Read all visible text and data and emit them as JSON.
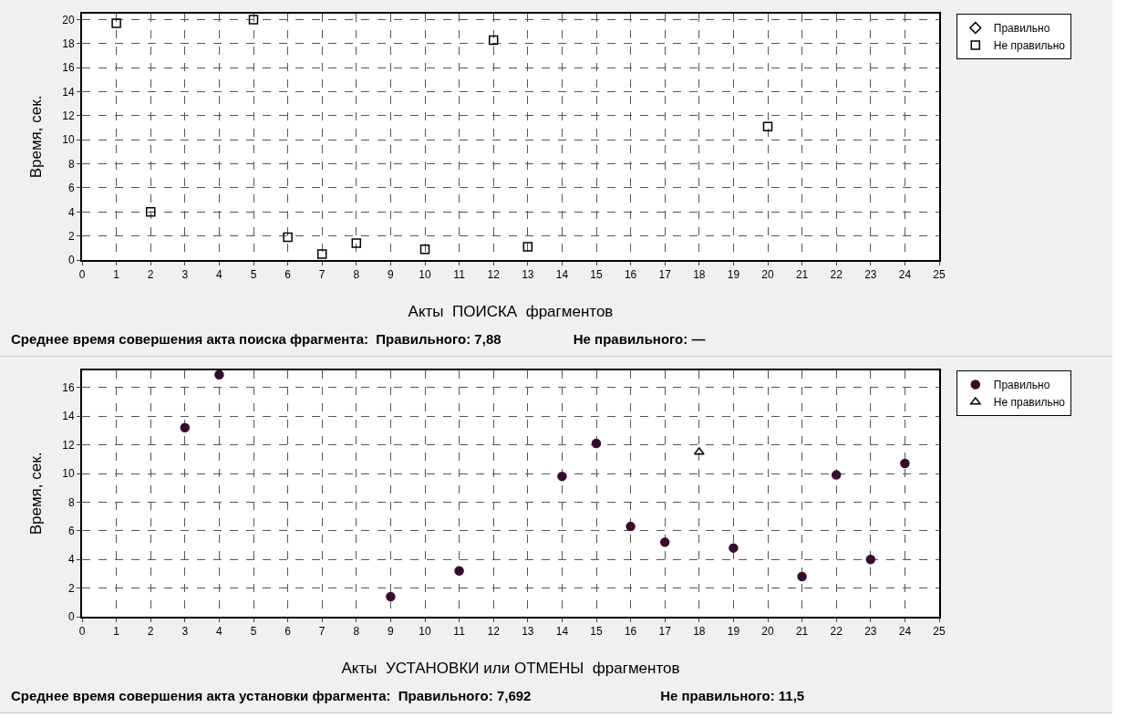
{
  "chart_data": [
    {
      "type": "scatter",
      "xlabel": "Акты  ПОИСКА  фрагментов",
      "ylabel": "Время, сек.",
      "xlim": [
        0,
        25
      ],
      "xticks": [
        0,
        1,
        2,
        3,
        4,
        5,
        6,
        7,
        8,
        9,
        10,
        11,
        12,
        13,
        14,
        15,
        16,
        17,
        18,
        19,
        20,
        21,
        22,
        23,
        24,
        25
      ],
      "ylim": [
        0,
        20.5
      ],
      "yticks": [
        0,
        2,
        4,
        6,
        8,
        10,
        12,
        14,
        16,
        18,
        20
      ],
      "grid": true,
      "legend": "top right",
      "series": [
        {
          "name": "Правильно",
          "color": "#000000",
          "marker": "diamond"
        },
        {
          "name": "Не правильно",
          "color": "#000000",
          "marker": "square",
          "x": [
            1,
            2,
            5,
            6,
            7,
            8,
            10,
            12,
            13,
            20
          ],
          "values": [
            19.7,
            4,
            20,
            1.9,
            0.5,
            1.4,
            0.9,
            18.3,
            1.1,
            11.1
          ]
        }
      ],
      "annotations": [
        "Среднее время совершения акта поиска фрагмента:  Правильного: 7,88                   Не правильного: —"
      ]
    },
    {
      "type": "scatter",
      "xlabel": "Акты  УСТАНОВКИ или ОТМЕНЫ  фрагментов",
      "ylabel": "Время, сек.",
      "xlim": [
        0,
        25
      ],
      "xticks": [
        0,
        1,
        2,
        3,
        4,
        5,
        6,
        7,
        8,
        9,
        10,
        11,
        12,
        13,
        14,
        15,
        16,
        17,
        18,
        19,
        20,
        21,
        22,
        23,
        24,
        25
      ],
      "ylim": [
        0,
        17.2
      ],
      "yticks": [
        0,
        2,
        4,
        6,
        8,
        10,
        12,
        14,
        16
      ],
      "grid": true,
      "legend": "top right",
      "series": [
        {
          "name": "Правильно",
          "color": "#3a0a2e",
          "marker": "circle",
          "x": [
            3,
            4,
            9,
            11,
            14,
            15,
            16,
            17,
            19,
            21,
            22,
            23,
            24
          ],
          "values": [
            13.2,
            16.9,
            1.4,
            3.2,
            9.8,
            12.1,
            6.3,
            5.2,
            4.8,
            2.8,
            9.9,
            4.0,
            10.7
          ]
        },
        {
          "name": "Не правильно",
          "color": "#000000",
          "marker": "triangle",
          "x": [
            18
          ],
          "values": [
            11.5
          ]
        }
      ],
      "annotations": [
        "Среднее время совершения акта установки фрагмента:  Правильного: 7,692                                  Не правильного: 11,5"
      ]
    }
  ]
}
